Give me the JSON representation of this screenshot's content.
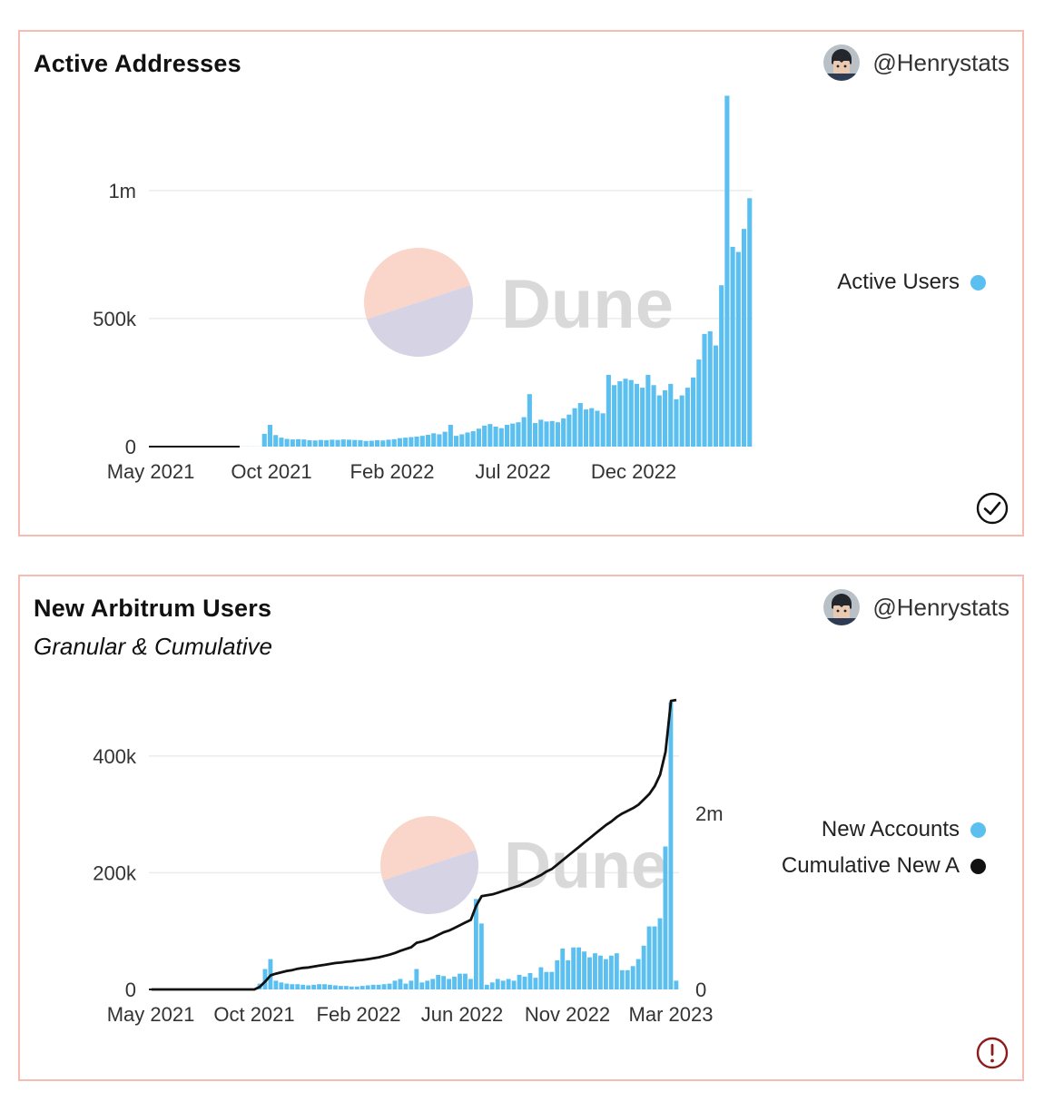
{
  "colors": {
    "bar": "#5bc0f0",
    "line": "#111111",
    "border": "#f6bcb4",
    "grid": "#ececec",
    "ok": "#111111",
    "warn": "#8e1b1b"
  },
  "watermark": {
    "text": "Dune"
  },
  "chart_data": [
    {
      "type": "bar",
      "title": "Active Addresses",
      "author": "@Henrystats",
      "status": "check-circle-icon",
      "x_ticks": [
        "May 2021",
        "Oct 2021",
        "Feb 2022",
        "Jul 2022",
        "Dec 2022"
      ],
      "y_ticks": [
        "0",
        "500k",
        "1m"
      ],
      "y_tick_values": [
        0,
        500000,
        1000000
      ],
      "ylim": [
        0,
        1400000
      ],
      "series": [
        {
          "name": "Active Users",
          "color": "#5bc0f0",
          "values": [
            500,
            500,
            500,
            500,
            500,
            500,
            500,
            500,
            500,
            500,
            500,
            500,
            500,
            500,
            500,
            500,
            500,
            500,
            500,
            500,
            50000,
            85000,
            45000,
            35000,
            30000,
            28000,
            29000,
            28000,
            25000,
            24000,
            26000,
            25000,
            27000,
            26000,
            28000,
            27000,
            26000,
            25000,
            22000,
            23000,
            25000,
            24000,
            27000,
            29000,
            33000,
            35000,
            37000,
            39000,
            42000,
            46000,
            52000,
            48000,
            58000,
            85000,
            42000,
            48000,
            55000,
            60000,
            70000,
            82000,
            88000,
            78000,
            72000,
            85000,
            90000,
            95000,
            115000,
            205000,
            92000,
            105000,
            98000,
            100000,
            95000,
            110000,
            125000,
            150000,
            170000,
            145000,
            150000,
            140000,
            130000,
            280000,
            240000,
            255000,
            265000,
            260000,
            245000,
            230000,
            280000,
            240000,
            200000,
            220000,
            245000,
            185000,
            200000,
            230000,
            270000,
            340000,
            440000,
            450000,
            395000,
            630000,
            1370000,
            780000,
            760000,
            850000,
            970000
          ]
        }
      ]
    },
    {
      "type": "bar+line",
      "title": "New Arbitrum Users",
      "subtitle": "Granular & Cumulative",
      "author": "@Henrystats",
      "status": "alert-circle-icon",
      "x_ticks": [
        "May 2021",
        "Oct 2021",
        "Feb 2022",
        "Jun 2022",
        "Nov 2022",
        "Mar 2023"
      ],
      "y_ticks": [
        "0",
        "200k",
        "400k"
      ],
      "y_tick_values": [
        0,
        200000,
        400000
      ],
      "ylim": [
        0,
        490000
      ],
      "y2_ticks": [
        "0",
        "2m"
      ],
      "y2_tick_values": [
        0,
        2000000
      ],
      "y2lim": [
        0,
        3250000
      ],
      "series": [
        {
          "name": "New Accounts",
          "color": "#5bc0f0",
          "axis": "left",
          "values": [
            0,
            0,
            0,
            0,
            0,
            0,
            0,
            0,
            0,
            0,
            0,
            0,
            0,
            0,
            0,
            0,
            0,
            0,
            0,
            0,
            10000,
            35000,
            52000,
            15000,
            12000,
            10000,
            9000,
            9000,
            8000,
            7000,
            8000,
            9000,
            9000,
            8000,
            7000,
            6000,
            6000,
            5000,
            5000,
            6000,
            7000,
            8000,
            8000,
            9000,
            10000,
            15000,
            18000,
            10000,
            15000,
            35000,
            12000,
            15000,
            18000,
            25000,
            23000,
            18000,
            22000,
            27000,
            27000,
            18000,
            155000,
            113000,
            8000,
            12000,
            18000,
            15000,
            18000,
            15000,
            25000,
            22000,
            28000,
            20000,
            38000,
            30000,
            30000,
            50000,
            70000,
            50000,
            72000,
            72000,
            65000,
            55000,
            62000,
            58000,
            52000,
            58000,
            62000,
            33000,
            33000,
            40000,
            52000,
            75000,
            108000,
            108000,
            122000,
            245000,
            492000,
            15000
          ]
        },
        {
          "name": "Cumulative New A",
          "color": "#111111",
          "axis": "right",
          "values": [
            0,
            0,
            0,
            0,
            0,
            0,
            0,
            0,
            0,
            0,
            0,
            0,
            0,
            0,
            0,
            0,
            0,
            0,
            0,
            0,
            30000,
            90000,
            160000,
            180000,
            195000,
            210000,
            220000,
            235000,
            245000,
            250000,
            260000,
            270000,
            280000,
            290000,
            300000,
            305000,
            315000,
            320000,
            330000,
            335000,
            345000,
            355000,
            365000,
            380000,
            395000,
            415000,
            440000,
            460000,
            480000,
            530000,
            545000,
            565000,
            590000,
            620000,
            650000,
            670000,
            700000,
            730000,
            760000,
            790000,
            950000,
            1060000,
            1070000,
            1080000,
            1100000,
            1120000,
            1140000,
            1160000,
            1180000,
            1210000,
            1240000,
            1270000,
            1300000,
            1340000,
            1370000,
            1420000,
            1470000,
            1520000,
            1570000,
            1620000,
            1670000,
            1720000,
            1770000,
            1820000,
            1870000,
            1910000,
            1960000,
            2000000,
            2030000,
            2060000,
            2100000,
            2160000,
            2220000,
            2310000,
            2440000,
            2700000,
            3280000,
            3290000
          ]
        }
      ]
    }
  ]
}
